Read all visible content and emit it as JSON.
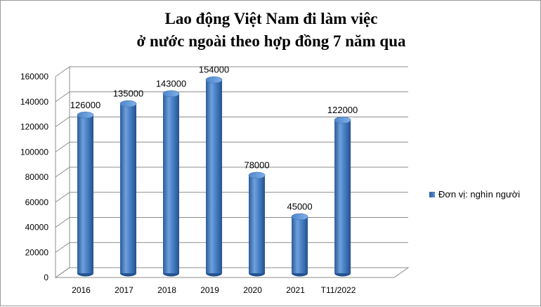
{
  "chart_data": {
    "type": "bar",
    "title_line1": "Lao động Việt Nam đi làm việc",
    "title_line2": "ở nước ngoài theo hợp đồng 7 năm qua",
    "categories": [
      "2016",
      "2017",
      "2018",
      "2019",
      "2020",
      "2021",
      "T11/2022"
    ],
    "series": [
      {
        "name": "Đơn vị: nghìn người",
        "values": [
          126000,
          135000,
          143000,
          154000,
          78000,
          45000,
          122000
        ]
      }
    ],
    "data_labels": [
      "126000",
      "135000",
      "143000",
      "154000",
      "78000",
      "45000",
      "122000"
    ],
    "yticks": [
      "0",
      "20000",
      "40000",
      "60000",
      "80000",
      "100000",
      "120000",
      "140000",
      "160000"
    ],
    "ylim": [
      0,
      160000
    ],
    "grid": true,
    "style": "3d-cylinder",
    "legend_position": "right",
    "bar_color": "#3a72b8",
    "bar_dark": "#23528f",
    "bar_light": "#6fa0dc"
  }
}
